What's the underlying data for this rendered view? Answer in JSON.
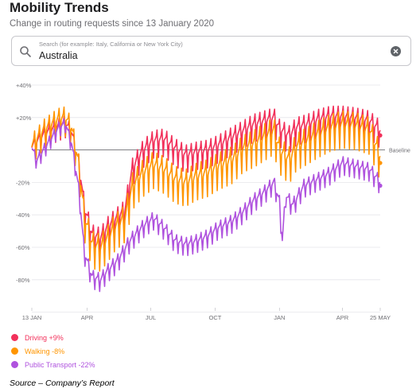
{
  "header": {
    "title": "Mobility Trends",
    "subtitle": "Change in routing requests since 13 January 2020"
  },
  "search": {
    "placeholder": "Search (for example: Italy, California or New York City)",
    "value": "Australia"
  },
  "icons": {
    "search": "search-icon",
    "clear": "clear-icon"
  },
  "chart_data": {
    "type": "line",
    "title": "",
    "xlabel": "",
    "ylabel": "",
    "ylim": [
      -100,
      40
    ],
    "xlim": [
      "2020-01-13",
      "2021-05-25"
    ],
    "y_ticks": [
      "+40%",
      "+20%",
      "",
      "-20%",
      "-40%",
      "-60%",
      "-80%"
    ],
    "x_ticks": [
      {
        "label": "13 JAN",
        "date": "2020-01-13"
      },
      {
        "label": "APR",
        "date": "2020-04-01"
      },
      {
        "label": "JUL",
        "date": "2020-07-01"
      },
      {
        "label": "OCT",
        "date": "2020-10-01"
      },
      {
        "label": "JAN",
        "date": "2021-01-01"
      },
      {
        "label": "APR",
        "date": "2021-04-01"
      },
      {
        "label": "25 MAY",
        "date": "2021-05-25"
      }
    ],
    "baseline": {
      "value": 0,
      "label": "Baseline"
    },
    "grid": true,
    "legend_position": "bottom-left",
    "series": [
      {
        "name": "Driving",
        "legend_label": "Driving +9%",
        "color": "#f2305a",
        "weekly_amplitude": 9,
        "points": [
          [
            "2020-01-13",
            0
          ],
          [
            "2020-02-01",
            8
          ],
          [
            "2020-02-20",
            12
          ],
          [
            "2020-03-01",
            14
          ],
          [
            "2020-03-10",
            8
          ],
          [
            "2020-03-20",
            -10
          ],
          [
            "2020-03-28",
            -38
          ],
          [
            "2020-04-08",
            -55
          ],
          [
            "2020-04-20",
            -57
          ],
          [
            "2020-05-01",
            -50
          ],
          [
            "2020-05-10",
            -46
          ],
          [
            "2020-05-25",
            -40
          ],
          [
            "2020-06-05",
            -14
          ],
          [
            "2020-06-20",
            -3
          ],
          [
            "2020-07-05",
            3
          ],
          [
            "2020-07-20",
            4
          ],
          [
            "2020-08-05",
            -2
          ],
          [
            "2020-08-20",
            -6
          ],
          [
            "2020-09-05",
            -4
          ],
          [
            "2020-09-20",
            -3
          ],
          [
            "2020-10-05",
            0
          ],
          [
            "2020-10-25",
            5
          ],
          [
            "2020-11-10",
            9
          ],
          [
            "2020-11-25",
            13
          ],
          [
            "2020-12-10",
            15
          ],
          [
            "2020-12-24",
            17
          ],
          [
            "2021-01-01",
            10
          ],
          [
            "2021-01-15",
            6
          ],
          [
            "2021-01-25",
            11
          ],
          [
            "2021-02-10",
            13
          ],
          [
            "2021-02-25",
            16
          ],
          [
            "2021-03-15",
            18
          ],
          [
            "2021-04-01",
            18
          ],
          [
            "2021-04-20",
            17
          ],
          [
            "2021-05-10",
            15
          ],
          [
            "2021-05-25",
            9
          ]
        ]
      },
      {
        "name": "Walking",
        "legend_label": "Walking -8%",
        "color": "#ff9500",
        "weekly_amplitude": 12,
        "points": [
          [
            "2020-01-13",
            0
          ],
          [
            "2020-02-01",
            10
          ],
          [
            "2020-02-20",
            16
          ],
          [
            "2020-03-01",
            17
          ],
          [
            "2020-03-10",
            10
          ],
          [
            "2020-03-20",
            -12
          ],
          [
            "2020-03-28",
            -45
          ],
          [
            "2020-04-08",
            -62
          ],
          [
            "2020-04-20",
            -64
          ],
          [
            "2020-05-01",
            -58
          ],
          [
            "2020-05-10",
            -52
          ],
          [
            "2020-05-25",
            -46
          ],
          [
            "2020-06-05",
            -26
          ],
          [
            "2020-06-20",
            -18
          ],
          [
            "2020-07-05",
            -13
          ],
          [
            "2020-07-20",
            -16
          ],
          [
            "2020-08-05",
            -22
          ],
          [
            "2020-08-20",
            -24
          ],
          [
            "2020-09-05",
            -20
          ],
          [
            "2020-09-20",
            -18
          ],
          [
            "2020-10-05",
            -14
          ],
          [
            "2020-10-25",
            -10
          ],
          [
            "2020-11-10",
            -3
          ],
          [
            "2020-11-25",
            0
          ],
          [
            "2020-12-10",
            4
          ],
          [
            "2020-12-24",
            8
          ],
          [
            "2021-01-01",
            -4
          ],
          [
            "2021-01-15",
            -10
          ],
          [
            "2021-01-25",
            -2
          ],
          [
            "2021-02-10",
            2
          ],
          [
            "2021-02-25",
            6
          ],
          [
            "2021-03-15",
            10
          ],
          [
            "2021-04-01",
            12
          ],
          [
            "2021-04-20",
            11
          ],
          [
            "2021-05-10",
            8
          ],
          [
            "2021-05-25",
            -8
          ]
        ]
      },
      {
        "name": "Public Transport",
        "legend_label": "Public Transport -22%",
        "color": "#af52de",
        "weekly_amplitude": 6,
        "points": [
          [
            "2020-01-13",
            0
          ],
          [
            "2020-01-20",
            -8
          ],
          [
            "2020-02-01",
            0
          ],
          [
            "2020-02-20",
            12
          ],
          [
            "2020-03-01",
            15
          ],
          [
            "2020-03-10",
            2
          ],
          [
            "2020-03-20",
            -25
          ],
          [
            "2020-03-28",
            -65
          ],
          [
            "2020-04-08",
            -80
          ],
          [
            "2020-04-20",
            -82
          ],
          [
            "2020-05-01",
            -76
          ],
          [
            "2020-05-15",
            -70
          ],
          [
            "2020-06-01",
            -58
          ],
          [
            "2020-06-20",
            -49
          ],
          [
            "2020-07-05",
            -44
          ],
          [
            "2020-07-20",
            -50
          ],
          [
            "2020-08-05",
            -58
          ],
          [
            "2020-08-20",
            -60
          ],
          [
            "2020-09-05",
            -58
          ],
          [
            "2020-09-20",
            -55
          ],
          [
            "2020-10-05",
            -50
          ],
          [
            "2020-10-25",
            -46
          ],
          [
            "2020-11-10",
            -40
          ],
          [
            "2020-11-25",
            -33
          ],
          [
            "2020-12-10",
            -28
          ],
          [
            "2020-12-24",
            -22
          ],
          [
            "2021-01-01",
            -34
          ],
          [
            "2021-01-05",
            -58
          ],
          [
            "2021-01-10",
            -30
          ],
          [
            "2021-01-20",
            -36
          ],
          [
            "2021-02-05",
            -24
          ],
          [
            "2021-02-25",
            -20
          ],
          [
            "2021-03-15",
            -16
          ],
          [
            "2021-04-01",
            -10
          ],
          [
            "2021-04-20",
            -12
          ],
          [
            "2021-05-10",
            -14
          ],
          [
            "2021-05-25",
            -22
          ]
        ]
      }
    ]
  },
  "source": "Source – Company’s Report"
}
